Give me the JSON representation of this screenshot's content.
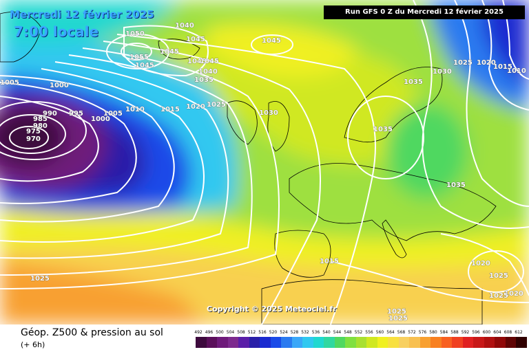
{
  "header": {
    "date": "Mercredi 12 février 2025",
    "time": "7:00 locale",
    "run": "Run GFS 0 Z du Mercredi 12 février 2025"
  },
  "copyright": "Copyright © 2025 Meteociel.fr",
  "footer": {
    "title": "Géop. Z500 & pression au sol",
    "subtitle": "(+ 6h)"
  },
  "legend": {
    "values": [
      "492",
      "496",
      "500",
      "504",
      "508",
      "512",
      "516",
      "520",
      "524",
      "528",
      "532",
      "536",
      "540",
      "544",
      "548",
      "552",
      "556",
      "560",
      "564",
      "568",
      "572",
      "576",
      "580",
      "584",
      "588",
      "592",
      "596",
      "600",
      "604",
      "608",
      "612"
    ],
    "colors": [
      "#3d0a3d",
      "#5a0f5a",
      "#6e1a7a",
      "#7d2a8e",
      "#5a1ea8",
      "#2a1fa8",
      "#1a2ad0",
      "#1a4ae8",
      "#2a7af0",
      "#3aa7f8",
      "#30c8f0",
      "#20d8d0",
      "#30d8a0",
      "#50d860",
      "#80e040",
      "#a8e030",
      "#d0e820",
      "#f0f020",
      "#f8e040",
      "#f8d060",
      "#f8c050",
      "#f8a030",
      "#f88020",
      "#f86020",
      "#f04020",
      "#e02020",
      "#c81818",
      "#b01010",
      "#900808",
      "#600404",
      "#300000"
    ]
  },
  "isobar_labels": [
    "1050",
    "1040",
    "1045",
    "1045",
    "1045",
    "1055",
    "1045",
    "1045",
    "1040",
    "1035",
    "1045",
    "1005",
    "1000",
    "990",
    "985",
    "980",
    "975",
    "970",
    "995",
    "1000",
    "1005",
    "1010",
    "1015",
    "1020",
    "1025",
    "1030",
    "1035",
    "1030",
    "1025",
    "1020",
    "1015",
    "1010",
    "1035",
    "1035",
    "1015",
    "1025",
    "1025",
    "1020",
    "1025",
    "1025",
    "1025",
    "1020"
  ],
  "icons": {
    "low": "low-pressure-center",
    "high": "high-pressure-center"
  }
}
